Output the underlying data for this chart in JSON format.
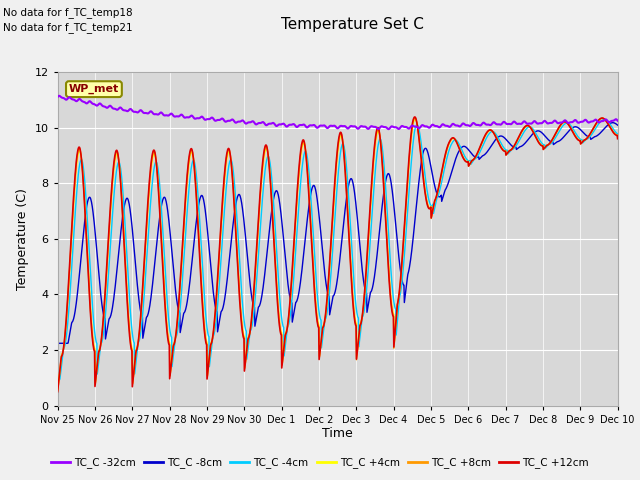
{
  "title": "Temperature Set C",
  "xlabel": "Time",
  "ylabel": "Temperature (C)",
  "ylim": [
    0,
    12
  ],
  "annotations": [
    "No data for f_TC_temp18",
    "No data for f_TC_temp21"
  ],
  "wp_met_label": "WP_met",
  "legend_entries": [
    "TC_C -32cm",
    "TC_C -8cm",
    "TC_C -4cm",
    "TC_C +4cm",
    "TC_C +8cm",
    "TC_C +12cm"
  ],
  "legend_colors": [
    "#9900ff",
    "#0000cc",
    "#00ccff",
    "#ffff00",
    "#ff9900",
    "#dd0000"
  ],
  "line_colors": {
    "TC_C_-32cm": "#9900ff",
    "TC_C_-8cm": "#0000cc",
    "TC_C_-4cm": "#00ccff",
    "TC_C_+4cm": "#ffff00",
    "TC_C_+8cm": "#ff9900",
    "TC_C_+12cm": "#dd0000"
  },
  "bg_color": "#d8d8d8",
  "fig_bg": "#f0f0f0",
  "xtick_labels": [
    "Nov 25",
    "Nov 26",
    "Nov 27",
    "Nov 28",
    "Nov 29",
    "Nov 30",
    "Dec 1",
    "Dec 2",
    "Dec 3",
    "Dec 4",
    "Dec 5",
    "Dec 6",
    "Dec 7",
    "Dec 8",
    "Dec 9",
    "Dec 10"
  ],
  "ytick_vals": [
    0,
    2,
    4,
    6,
    8,
    10,
    12
  ]
}
